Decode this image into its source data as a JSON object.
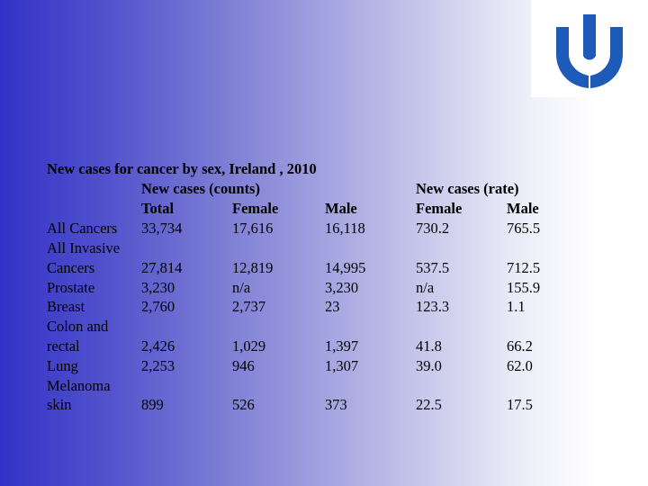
{
  "slide": {
    "title": "New cases for cancer by sex, Ireland , 2010",
    "group_headers": {
      "counts": "New cases (counts)",
      "rate": "New cases (rate)"
    },
    "column_headers": [
      "Total",
      "Female",
      "Male",
      "Female",
      "Male"
    ],
    "rows": [
      {
        "label": [
          "All Cancers"
        ],
        "values": [
          "33,734",
          "17,616",
          "16,118",
          "730.2",
          "765.5"
        ]
      },
      {
        "label": [
          "All Invasive",
          "Cancers"
        ],
        "values": [
          "27,814",
          "12,819",
          "14,995",
          "537.5",
          "712.5"
        ]
      },
      {
        "label": [
          "Prostate"
        ],
        "values": [
          "3,230",
          "n/a",
          "3,230",
          "n/a",
          "155.9"
        ]
      },
      {
        "label": [
          "Breast"
        ],
        "values": [
          "2,760",
          "2,737",
          "23",
          "123.3",
          "1.1"
        ]
      },
      {
        "label": [
          "Colon and",
          "rectal"
        ],
        "values": [
          "2,426",
          "1,029",
          "1,397",
          "41.8",
          "66.2"
        ]
      },
      {
        "label": [
          "Lung"
        ],
        "values": [
          "2,253",
          "946",
          "1,307",
          "39.0",
          "62.0"
        ]
      },
      {
        "label": [
          "Melanoma",
          "skin"
        ],
        "values": [
          "899",
          "526",
          "373",
          "22.5",
          "17.5"
        ]
      }
    ],
    "logo_color": "#1e5bb8"
  }
}
